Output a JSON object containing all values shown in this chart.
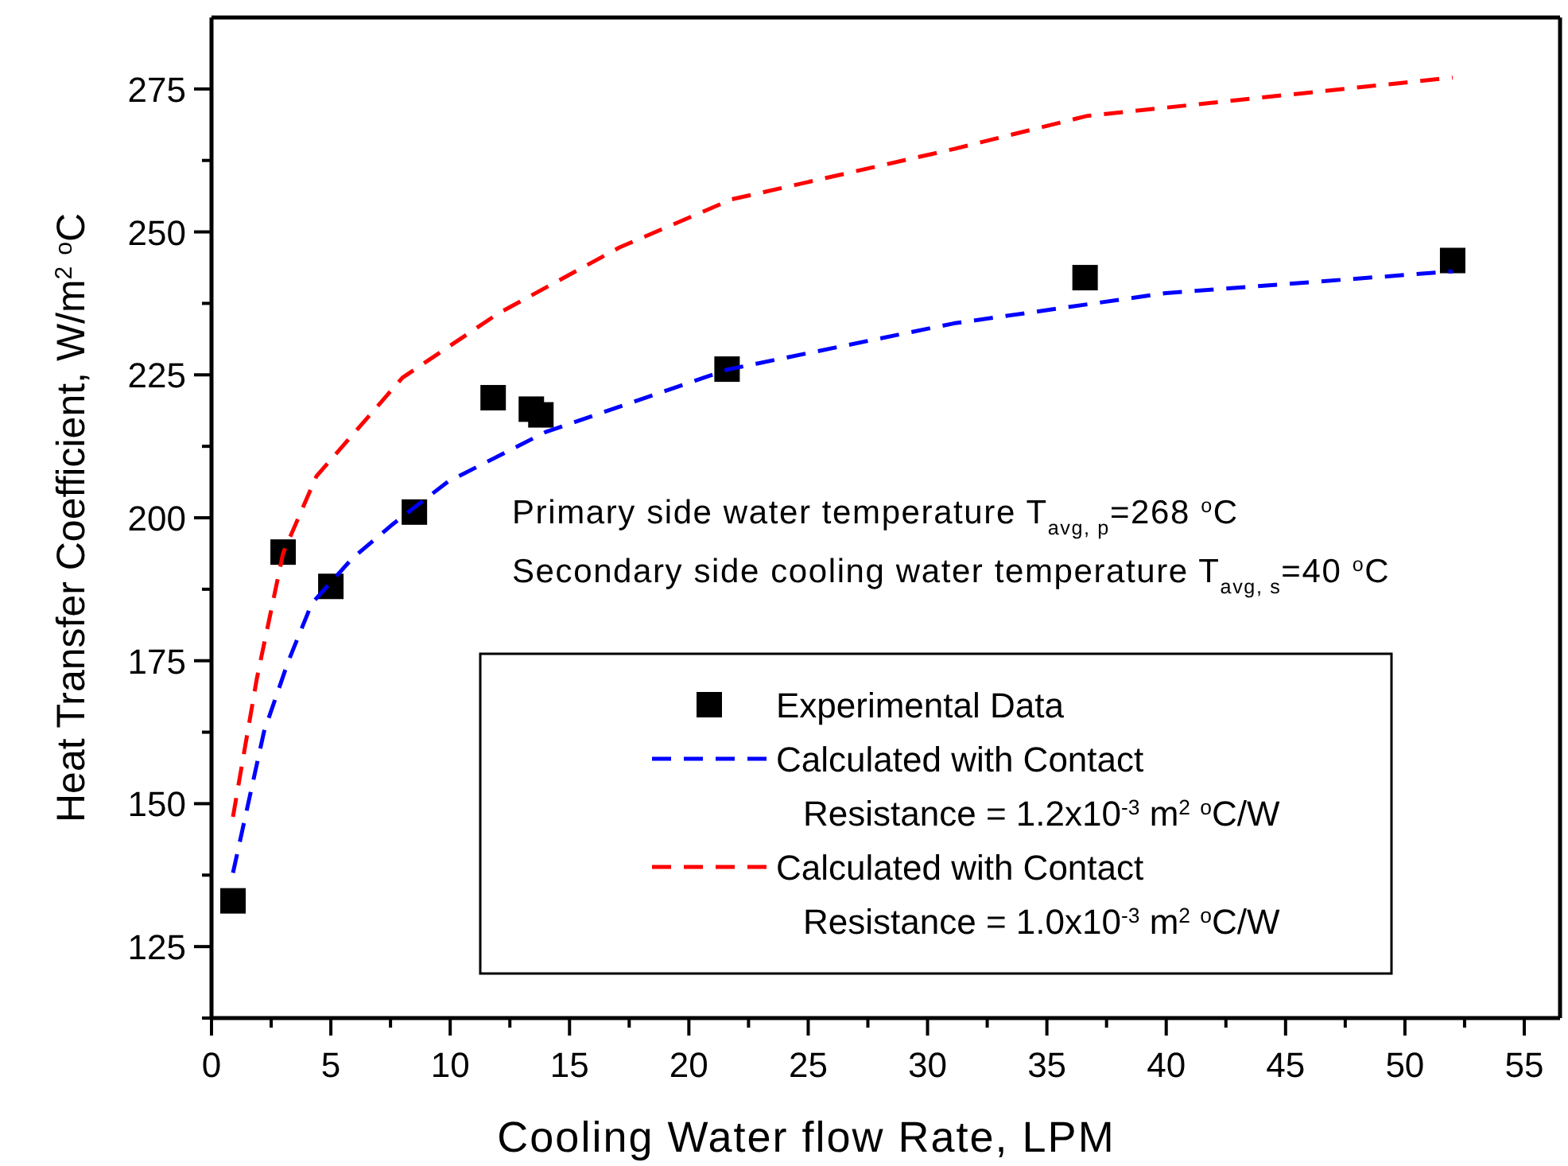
{
  "chart_data": {
    "type": "scatter",
    "xlabel": "Cooling Water flow Rate, LPM",
    "ylabel": "Heat Transfer Coefficient, W/m$^{2}$ $^{o}$C",
    "xlim": [
      0,
      56.5
    ],
    "ylim": [
      112.5,
      287.5
    ],
    "xticks": [
      0,
      {
        "value": 2.5,
        "label": null
      },
      5,
      {
        "value": 7.5,
        "label": null
      },
      10,
      {
        "value": 12.5,
        "label": null
      },
      15,
      {
        "value": 17.5,
        "label": null
      },
      20,
      {
        "value": 22.5,
        "label": null
      },
      25,
      {
        "value": 27.5,
        "label": null
      },
      30,
      {
        "value": 32.5,
        "label": null
      },
      35,
      {
        "value": 37.5,
        "label": null
      },
      40,
      {
        "value": 42.5,
        "label": null
      },
      45,
      {
        "value": 47.5,
        "label": null
      },
      50,
      {
        "value": 52.5,
        "label": null
      },
      55
    ],
    "yticks": [
      {
        "value": 112.5,
        "label": null
      },
      125,
      {
        "value": 137.5,
        "label": null
      },
      150,
      {
        "value": 162.5,
        "label": null
      },
      175,
      {
        "value": 187.5,
        "label": null
      },
      200,
      {
        "value": 212.5,
        "label": null
      },
      225,
      {
        "value": 237.5,
        "label": null
      },
      250,
      {
        "value": 262.5,
        "label": null
      },
      275
    ],
    "legend": "bottom right",
    "annotations": [
      "Primary side water temperature T$_{avg, p}$=268 $^{o}$C",
      "Secondary side cooling water temperature T$_{avg, s}$=40 $^{o}$C"
    ],
    "series": [
      {
        "name": "Experimental Data",
        "color": "#000000",
        "marker": "square",
        "x": [
          0.9,
          3,
          5,
          8.5,
          11.8,
          13.4,
          13.8,
          21.6,
          36.6,
          52
        ],
        "values": [
          133,
          194,
          188,
          201,
          221,
          219,
          218,
          226,
          242,
          245
        ]
      },
      {
        "name": "Calculated with Contact Resistance = 1.2x10$^{-3}$ m$^{2}$ $^{o}$C/W",
        "type": "line",
        "color": "#0000ff",
        "line_style": "dashed",
        "marker": "none",
        "x": [
          0.9,
          2.2,
          3.2,
          4.2,
          5.9,
          7.6,
          9.9,
          14,
          21.6,
          31.1,
          40,
          52
        ],
        "values": [
          137.9,
          162.6,
          174.7,
          185,
          192.9,
          198.9,
          206.3,
          215,
          225.9,
          234,
          239.3,
          243.1
        ]
      },
      {
        "name": "Calculated with Contact Resistance = 1.0x10$^{-3}$ m$^{2}$ $^{o}$C/W",
        "type": "line",
        "color": "#ff0000",
        "line_style": "dashed",
        "marker": "none",
        "x": [
          0.9,
          1.9,
          3,
          4.4,
          8,
          12,
          17.1,
          21.8,
          31.1,
          36.7,
          52
        ],
        "values": [
          147.7,
          171.9,
          193.8,
          207.3,
          224.5,
          235.7,
          247.3,
          255.7,
          264.5,
          270.3,
          277
        ]
      }
    ]
  }
}
